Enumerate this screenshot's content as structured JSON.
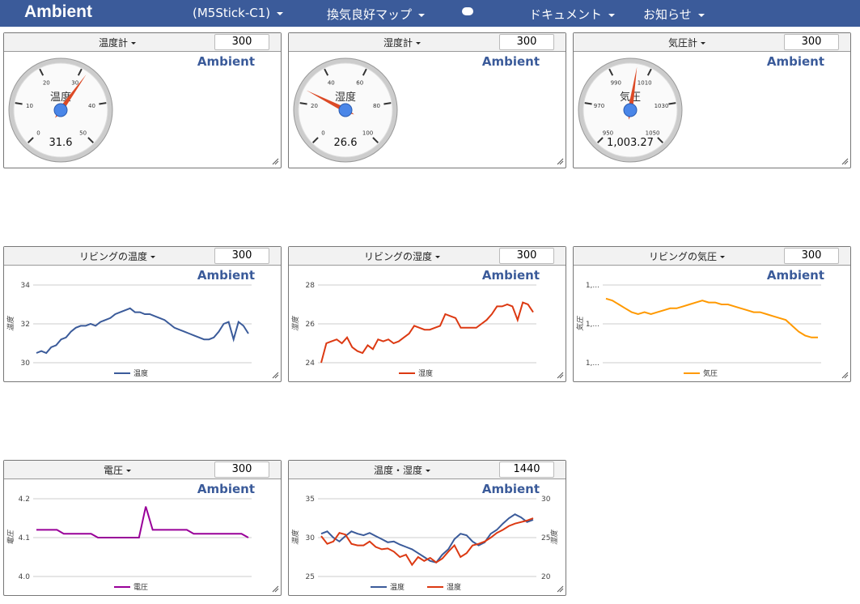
{
  "navbar": {
    "brand": "Ambient",
    "menus": [
      "(M5Stick-C1)",
      "換気良好マップ",
      "ドキュメント",
      "お知らせ"
    ]
  },
  "panels": [
    {
      "title": "温度計",
      "period": "300",
      "brand": "Ambient",
      "gauge": {
        "label": "温度",
        "value": 31.6,
        "lim": [
          0,
          50
        ],
        "ticks": [
          0,
          10,
          20,
          30,
          40,
          50
        ]
      }
    },
    {
      "title": "湿度計",
      "period": "300",
      "brand": "Ambient",
      "gauge": {
        "label": "湿度",
        "value": 26.6,
        "lim": [
          0,
          100
        ],
        "ticks": [
          0,
          20,
          40,
          60,
          80,
          100
        ]
      }
    },
    {
      "title": "気圧計",
      "period": "300",
      "brand": "Ambient",
      "gauge": {
        "label": "気圧",
        "value": {
          "value": 1003.27,
          "label": "1,003.27"
        },
        "lim": [
          950,
          1050
        ],
        "ticks": [
          950,
          970,
          990,
          1010,
          1030,
          1050
        ]
      }
    },
    {
      "title": "リビングの温度",
      "period": "300",
      "brand": "Ambient",
      "chart": {
        "type": "line",
        "ytitle": "温度",
        "ylim": [
          30,
          34
        ],
        "yticks": [
          30,
          32,
          34
        ],
        "series": [
          {
            "name": "温度",
            "color": "#3b5b9a",
            "values": [
              30.5,
              30.6,
              30.5,
              30.8,
              30.9,
              31.2,
              31.3,
              31.6,
              31.8,
              31.9,
              31.9,
              32.0,
              31.9,
              32.1,
              32.2,
              32.3,
              32.5,
              32.6,
              32.7,
              32.8,
              32.6,
              32.6,
              32.5,
              32.5,
              32.4,
              32.3,
              32.2,
              32.0,
              31.8,
              31.7,
              31.6,
              31.5,
              31.4,
              31.3,
              31.2,
              31.2,
              31.3,
              31.6,
              32.0,
              32.1,
              31.2,
              32.1,
              31.9,
              31.5
            ]
          }
        ]
      }
    },
    {
      "title": "リビングの湿度",
      "period": "300",
      "brand": "Ambient",
      "chart": {
        "type": "line",
        "ytitle": "湿度",
        "ylim": [
          24,
          28
        ],
        "yticks": [
          24,
          26,
          28
        ],
        "series": [
          {
            "name": "湿度",
            "color": "#dc3912",
            "values": [
              24.0,
              25.0,
              25.1,
              25.2,
              25.0,
              25.3,
              24.8,
              24.6,
              24.5,
              24.9,
              24.7,
              25.2,
              25.1,
              25.2,
              25.0,
              25.1,
              25.3,
              25.5,
              25.9,
              25.8,
              25.7,
              25.7,
              25.8,
              25.9,
              26.5,
              26.4,
              26.3,
              25.8,
              25.8,
              25.8,
              25.8,
              26.0,
              26.2,
              26.5,
              26.9,
              26.9,
              27.0,
              26.9,
              26.2,
              27.1,
              27.0,
              26.6
            ]
          }
        ]
      }
    },
    {
      "title": "リビングの気圧",
      "period": "300",
      "brand": "Ambient",
      "chart": {
        "type": "line",
        "ytitle": "気圧",
        "ylim": [
          1002,
          1006
        ],
        "yticks": [
          {
            "value": 1002,
            "label": "1,..."
          },
          {
            "value": 1004,
            "label": "1,..."
          },
          {
            "value": 1006,
            "label": "1,..."
          }
        ],
        "series": [
          {
            "name": "気圧",
            "color": "#ff9900",
            "values": [
              1005.3,
              1005.2,
              1005.0,
              1004.8,
              1004.6,
              1004.5,
              1004.6,
              1004.5,
              1004.6,
              1004.7,
              1004.8,
              1004.8,
              1004.9,
              1005.0,
              1005.1,
              1005.2,
              1005.1,
              1005.1,
              1005.0,
              1005.0,
              1004.9,
              1004.8,
              1004.7,
              1004.6,
              1004.6,
              1004.5,
              1004.4,
              1004.3,
              1004.2,
              1003.9,
              1003.6,
              1003.4,
              1003.3,
              1003.3
            ]
          }
        ]
      }
    },
    {
      "title": "電圧",
      "period": "300",
      "brand": "Ambient",
      "chart": {
        "type": "line",
        "ytitle": "電圧",
        "ylim": [
          4,
          4.2
        ],
        "yticks": [
          {
            "value": 4,
            "label": "4.0"
          },
          4.1,
          4.2
        ],
        "series": [
          {
            "name": "電圧",
            "color": "#990099",
            "values": [
              4.12,
              4.12,
              4.12,
              4.12,
              4.11,
              4.11,
              4.11,
              4.11,
              4.11,
              4.1,
              4.1,
              4.1,
              4.1,
              4.1,
              4.1,
              4.1,
              4.18,
              4.12,
              4.12,
              4.12,
              4.12,
              4.12,
              4.12,
              4.11,
              4.11,
              4.11,
              4.11,
              4.11,
              4.11,
              4.11,
              4.11,
              4.1
            ]
          }
        ]
      }
    },
    {
      "title": "温度・湿度",
      "period": "1440",
      "brand": "Ambient",
      "chart": {
        "type": "line",
        "ytitle": "温度",
        "y2title": "湿度",
        "ylim": [
          25,
          35
        ],
        "yticks": [
          25,
          30,
          35
        ],
        "y2lim": [
          20,
          30
        ],
        "y2ticks": [
          20,
          25,
          30
        ],
        "series": [
          {
            "name": "温度",
            "color": "#3b5b9a",
            "values": [
              30.5,
              30.8,
              30.0,
              29.5,
              30.2,
              30.8,
              30.5,
              30.3,
              30.6,
              30.2,
              29.8,
              29.4,
              29.5,
              29.1,
              28.8,
              28.5,
              28.0,
              27.5,
              27.0,
              26.8,
              27.8,
              28.5,
              29.8,
              30.5,
              30.3,
              29.5,
              29.0,
              29.4,
              30.5,
              31.0,
              31.8,
              32.5,
              33.0,
              32.6,
              32.0,
              32.3
            ]
          },
          {
            "name": "湿度",
            "color": "#dc3912",
            "axis": "y2",
            "values": [
              25.2,
              24.2,
              24.5,
              25.6,
              25.4,
              24.2,
              24.0,
              24.0,
              24.5,
              23.8,
              23.5,
              23.6,
              23.2,
              22.5,
              22.8,
              21.5,
              22.5,
              22.0,
              22.4,
              21.8,
              22.3,
              23.2,
              24.0,
              22.5,
              23.0,
              24.0,
              24.2,
              24.5,
              25.0,
              25.6,
              26.0,
              26.5,
              26.8,
              27.0,
              27.2,
              27.5
            ]
          }
        ]
      }
    }
  ]
}
